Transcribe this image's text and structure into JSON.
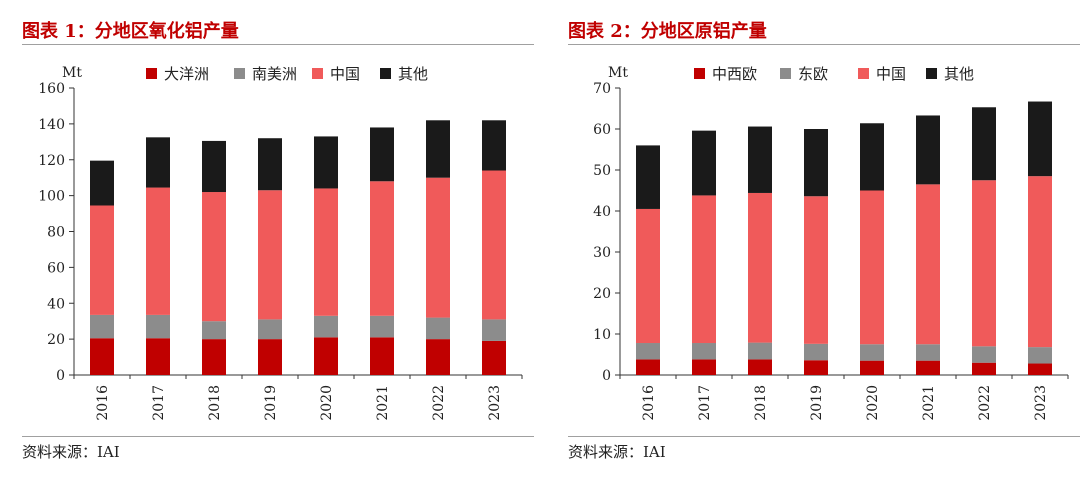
{
  "colors": {
    "title": "#c00000",
    "series1": "#c00000",
    "series2": "#8c8c8c",
    "series3": "#f05a5a",
    "series4": "#1a1a1a"
  },
  "chart_data": [
    {
      "type": "bar",
      "stacked": true,
      "title": "图表 1：分地区氧化铝产量",
      "ylabel": "Mt",
      "xlabel": "",
      "ylim": [
        0,
        160
      ],
      "yticks": [
        0,
        20,
        40,
        60,
        80,
        100,
        120,
        140,
        160
      ],
      "categories": [
        "2016",
        "2017",
        "2018",
        "2019",
        "2020",
        "2021",
        "2022",
        "2023"
      ],
      "legend_position": "top",
      "series": [
        {
          "name": "大洋洲",
          "values": [
            20.5,
            20.5,
            20,
            20,
            21,
            21,
            20,
            19
          ]
        },
        {
          "name": "南美洲",
          "values": [
            13,
            13,
            10,
            11,
            12,
            12,
            12,
            12
          ]
        },
        {
          "name": "中国",
          "values": [
            61,
            71,
            72,
            72,
            71,
            75,
            78,
            83
          ]
        },
        {
          "name": "其他",
          "values": [
            25,
            28,
            28.5,
            29,
            29,
            30,
            32,
            28
          ]
        }
      ],
      "source": "资料来源：IAI"
    },
    {
      "type": "bar",
      "stacked": true,
      "title": "图表 2：分地区原铝产量",
      "ylabel": "Mt",
      "xlabel": "",
      "ylim": [
        0,
        70
      ],
      "yticks": [
        0,
        10,
        20,
        30,
        40,
        50,
        60,
        70
      ],
      "categories": [
        "2016",
        "2017",
        "2018",
        "2019",
        "2020",
        "2021",
        "2022",
        "2023"
      ],
      "legend_position": "top",
      "series": [
        {
          "name": "中西欧",
          "values": [
            3.8,
            3.8,
            3.8,
            3.6,
            3.5,
            3.5,
            3.0,
            2.8
          ]
        },
        {
          "name": "东欧",
          "values": [
            4.0,
            4.0,
            4.1,
            4.0,
            4.0,
            4.0,
            4.0,
            4.0
          ]
        },
        {
          "name": "中国",
          "values": [
            32.7,
            36.0,
            36.5,
            36.0,
            37.5,
            39.0,
            40.5,
            41.7
          ]
        },
        {
          "name": "其他",
          "values": [
            15.5,
            15.8,
            16.2,
            16.4,
            16.4,
            16.8,
            17.8,
            18.2
          ]
        }
      ],
      "source": "资料来源：IAI"
    }
  ]
}
